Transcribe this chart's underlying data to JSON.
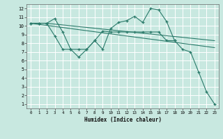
{
  "xlabel": "Humidex (Indice chaleur)",
  "xlim": [
    -0.5,
    23.5
  ],
  "ylim": [
    0.5,
    12.5
  ],
  "xticks": [
    0,
    1,
    2,
    3,
    4,
    5,
    6,
    7,
    8,
    9,
    10,
    11,
    12,
    13,
    14,
    15,
    16,
    17,
    18,
    19,
    20,
    21,
    22,
    23
  ],
  "yticks": [
    1,
    2,
    3,
    4,
    5,
    6,
    7,
    8,
    9,
    10,
    11,
    12
  ],
  "bg_color": "#c8e8e0",
  "grid_color": "#ffffff",
  "line_color": "#2a7a6a",
  "series": [
    {
      "x": [
        0,
        1,
        2,
        23
      ],
      "y": [
        10.3,
        10.3,
        10.3,
        8.3
      ],
      "marker": false
    },
    {
      "x": [
        0,
        23
      ],
      "y": [
        10.3,
        7.5
      ],
      "marker": false
    },
    {
      "x": [
        0,
        1,
        2,
        3,
        4,
        5,
        6,
        7,
        8,
        9,
        10,
        11,
        12,
        13,
        14,
        15,
        16,
        17,
        18,
        19,
        20,
        21,
        22,
        23
      ],
      "y": [
        10.3,
        10.3,
        10.3,
        10.85,
        9.3,
        7.3,
        7.3,
        7.3,
        8.3,
        7.3,
        9.7,
        10.4,
        10.6,
        11.1,
        10.4,
        12.0,
        11.85,
        10.5,
        8.3,
        7.3,
        7.0,
        4.7,
        2.4,
        1.0
      ],
      "marker": true
    },
    {
      "x": [
        0,
        1,
        2,
        3,
        4,
        5,
        6,
        7,
        8,
        9,
        10,
        11,
        12,
        13,
        14,
        15,
        16,
        17,
        18
      ],
      "y": [
        10.3,
        10.3,
        10.3,
        8.85,
        7.3,
        7.3,
        6.4,
        7.3,
        8.3,
        9.4,
        9.3,
        9.3,
        9.3,
        9.3,
        9.3,
        9.3,
        9.3,
        8.3,
        8.3
      ],
      "marker": true
    }
  ]
}
